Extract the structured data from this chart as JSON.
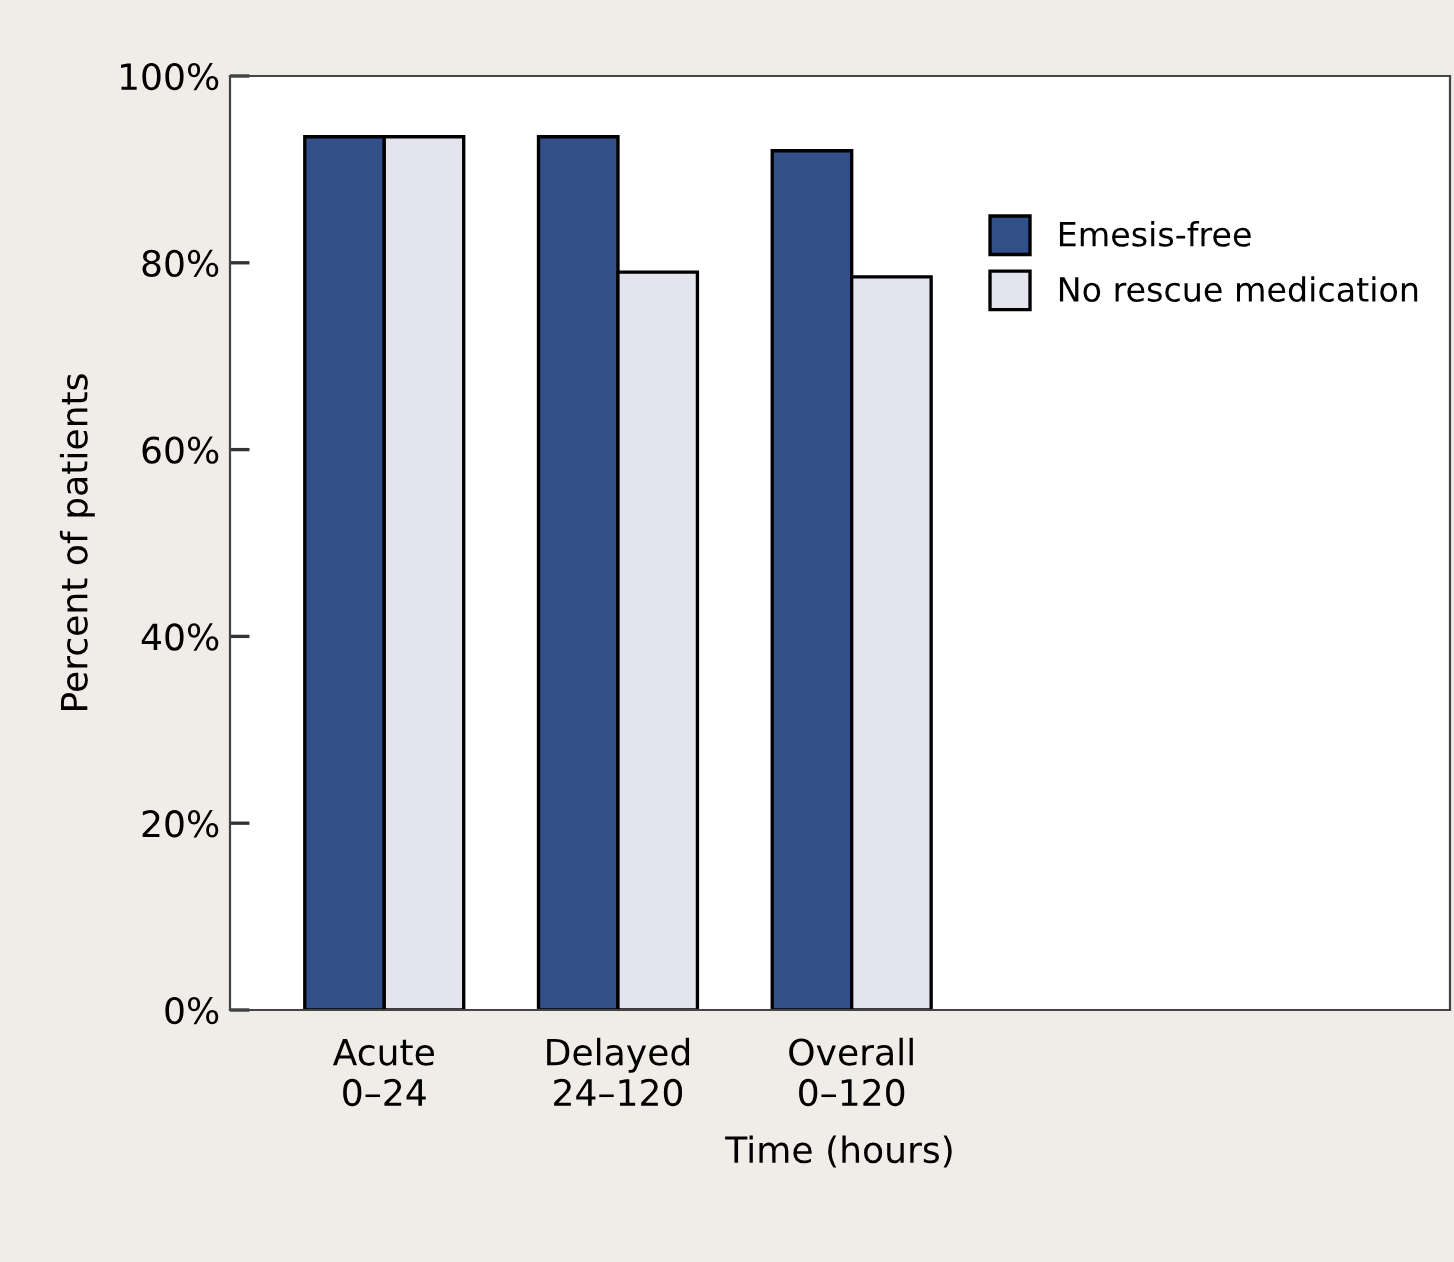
{
  "chart_data": {
    "type": "bar",
    "xlabel": "Time (hours)",
    "ylabel": "Percent of patients",
    "categories": [
      "Acute\n0–24",
      "Delayed\n24–120",
      "Overall\n0–120"
    ],
    "series": [
      {
        "name": "Emesis-free",
        "color": "#324f8a",
        "values": [
          93.5,
          93.5,
          92
        ]
      },
      {
        "name": "No rescue medication",
        "color": "#e4e4ee",
        "values": [
          93.5,
          79,
          78.5
        ]
      }
    ],
    "ylim": [
      0,
      100
    ],
    "yticks": [
      {
        "value": 0,
        "label": "0%"
      },
      {
        "value": 20,
        "label": "20%"
      },
      {
        "value": 40,
        "label": "40%"
      },
      {
        "value": 60,
        "label": "60%"
      },
      {
        "value": 80,
        "label": "80%"
      },
      {
        "value": 100,
        "label": "100%"
      }
    ],
    "grid": false,
    "legend": "right"
  }
}
